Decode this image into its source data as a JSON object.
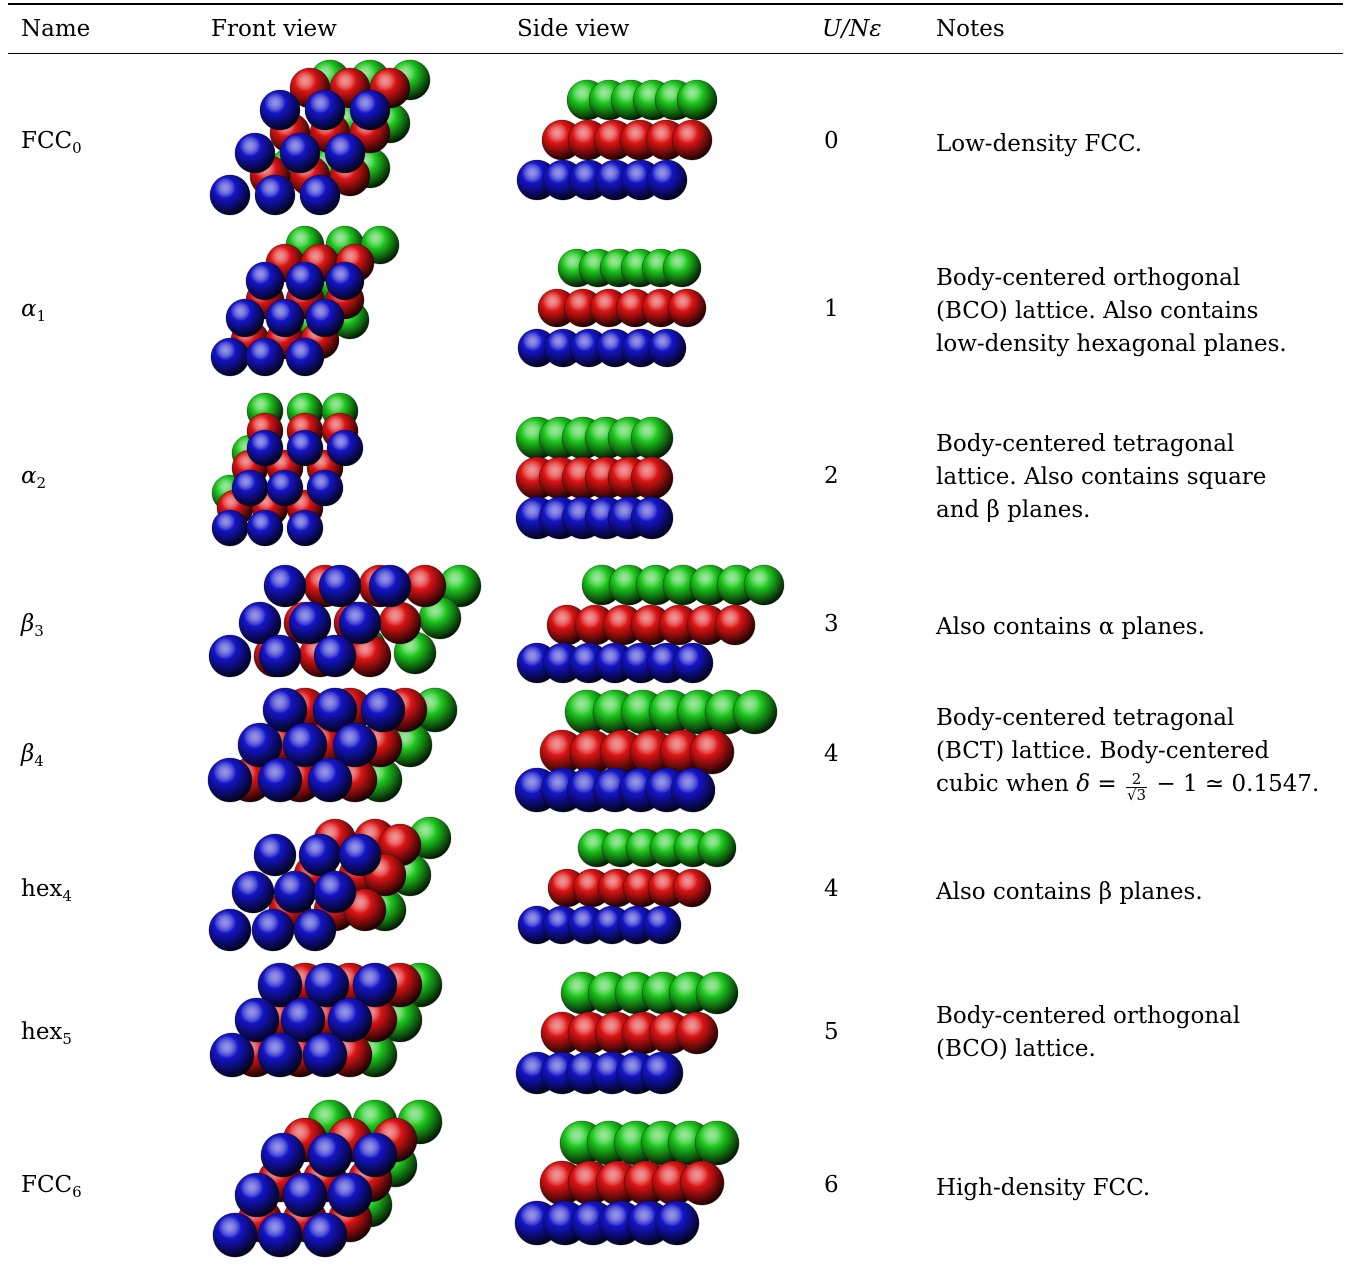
{
  "header": {
    "name": "Name",
    "front": "Front view",
    "side": "Side view",
    "energy": "U/Nε",
    "notes": "Notes"
  },
  "colors": {
    "green": "#1ec81e",
    "red": "#dc1414",
    "blue": "#1414c8"
  },
  "rows": [
    {
      "name_base": "FCC",
      "name_sub": "0",
      "energy": "0",
      "notes": [
        "Low-density FCC."
      ]
    },
    {
      "name_base": "α",
      "name_sub": "1",
      "energy": "1",
      "notes": [
        "Body-centered orthogonal",
        "(BCO) lattice. Also contains",
        "low-density hexagonal planes."
      ]
    },
    {
      "name_base": "α",
      "name_sub": "2",
      "energy": "2",
      "notes": [
        "Body-centered tetragonal",
        "lattice. Also contains square",
        "and β planes."
      ]
    },
    {
      "name_base": "β",
      "name_sub": "3",
      "energy": "3",
      "notes": [
        "Also contains α planes."
      ]
    },
    {
      "name_base": "β",
      "name_sub": "4",
      "energy": "4",
      "notes": [
        "Body-centered tetragonal",
        "(BCT) lattice. Body-centered"
      ],
      "notes_formula": {
        "prefix": "cubic when",
        "delta": "δ",
        "eq": "=",
        "frac_num": "2",
        "frac_den": "√3",
        "rest": "− 1 ≃ 0.1547."
      }
    },
    {
      "name_base": "hex",
      "name_sub": "4",
      "energy": "4",
      "notes": [
        "Also contains β planes."
      ]
    },
    {
      "name_base": "hex",
      "name_sub": "5",
      "energy": "5",
      "notes": [
        "Body-centered orthogonal",
        "(BCO) lattice."
      ]
    },
    {
      "name_base": "FCC",
      "name_sub": "6",
      "energy": "6",
      "notes": [
        "High-density FCC."
      ]
    }
  ]
}
